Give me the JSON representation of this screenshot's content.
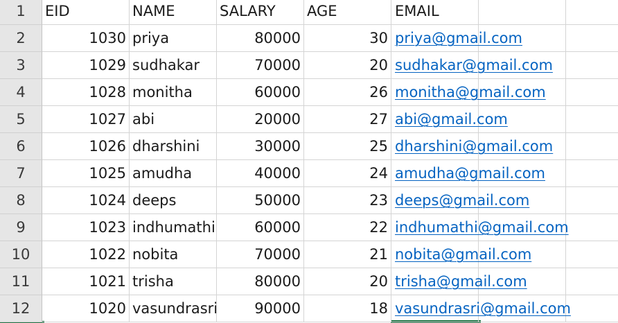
{
  "sheet": {
    "rows": [
      {
        "row": "1",
        "eid": "EID",
        "name": "NAME",
        "salary": "SALARY",
        "age": "AGE",
        "email": "EMAIL",
        "header": true
      },
      {
        "row": "2",
        "eid": "1030",
        "name": "priya",
        "salary": "80000",
        "age": "30",
        "email": "priya@gmail.com"
      },
      {
        "row": "3",
        "eid": "1029",
        "name": "sudhakar",
        "salary": "70000",
        "age": "20",
        "email": "sudhakar@gmail.com"
      },
      {
        "row": "4",
        "eid": "1028",
        "name": "monitha",
        "salary": "60000",
        "age": "26",
        "email": "monitha@gmail.com"
      },
      {
        "row": "5",
        "eid": "1027",
        "name": "abi",
        "salary": "20000",
        "age": "27",
        "email": "abi@gmail.com"
      },
      {
        "row": "6",
        "eid": "1026",
        "name": "dharshini",
        "salary": "30000",
        "age": "25",
        "email": "dharshini@gmail.com"
      },
      {
        "row": "7",
        "eid": "1025",
        "name": "amudha",
        "salary": "40000",
        "age": "24",
        "email": "amudha@gmail.com"
      },
      {
        "row": "8",
        "eid": "1024",
        "name": "deeps",
        "salary": "50000",
        "age": "23",
        "email": "deeps@gmail.com"
      },
      {
        "row": "9",
        "eid": "1023",
        "name": "indhumathi",
        "salary": "60000",
        "age": "22",
        "email": "indhumathi@gmail.com"
      },
      {
        "row": "10",
        "eid": "1022",
        "name": "nobita",
        "salary": "70000",
        "age": "21",
        "email": "nobita@gmail.com"
      },
      {
        "row": "11",
        "eid": "1021",
        "name": "trisha",
        "salary": "80000",
        "age": "20",
        "email": "trisha@gmail.com"
      },
      {
        "row": "12",
        "eid": "1020",
        "name": "vasundrasri",
        "salary": "90000",
        "age": "18",
        "email": "vasundrasri@gmail.com"
      }
    ]
  },
  "colors": {
    "hyperlink": "#0563c1",
    "row_header_bg": "#e6e6e6",
    "gridline": "#d4d4d4",
    "selection": "#217346"
  }
}
